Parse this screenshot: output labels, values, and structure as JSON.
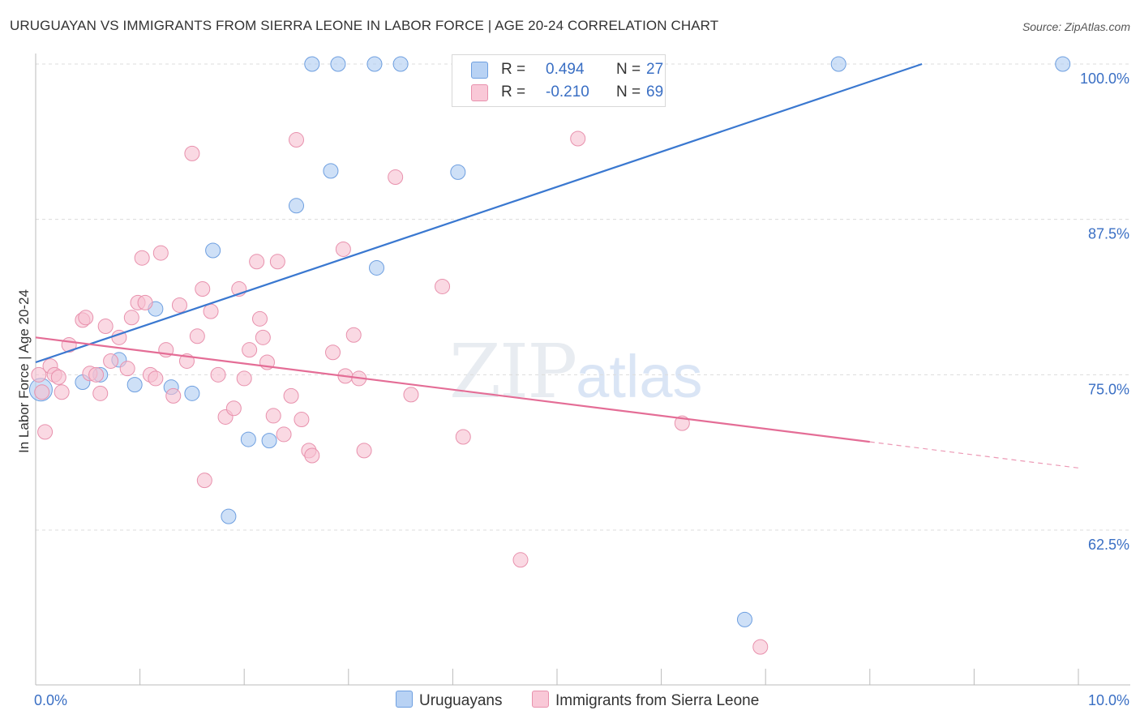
{
  "title": "URUGUAYAN VS IMMIGRANTS FROM SIERRA LEONE IN LABOR FORCE | AGE 20-24 CORRELATION CHART",
  "source": "Source: ZipAtlas.com",
  "watermark": {
    "zip": "ZIP",
    "atlas": "atlas"
  },
  "legend": {
    "rows": [
      {
        "r_label": "R =",
        "r_value": "0.494",
        "n_label": "N =",
        "n_value": "27"
      },
      {
        "r_label": "R =",
        "r_value": "-0.210",
        "n_label": "N =",
        "n_value": "69"
      }
    ]
  },
  "chart_data": {
    "type": "scatter",
    "ylabel": "In Labor Force | Age 20-24",
    "xlim": [
      0,
      10
    ],
    "ylim": [
      51.5,
      101
    ],
    "x_tick_labels": [
      "0.0%",
      "10.0%"
    ],
    "y_ticks": [
      62.5,
      75.0,
      87.5,
      100.0
    ],
    "y_tick_labels": [
      "62.5%",
      "75.0%",
      "87.5%",
      "100.0%"
    ],
    "grid": true,
    "legend_position": "top-center",
    "colors": {
      "uruguayans": "#3a78d0",
      "sierra_leone": "#e46d96",
      "tick_label": "#3a6fc4"
    },
    "series": [
      {
        "name": "Uruguayans",
        "fill": "#aecbf2",
        "stroke": "#6e9fe0",
        "trend": {
          "x0": 0.0,
          "y0": 76.0,
          "x1": 8.5,
          "y1": 100.0,
          "dash_to": null
        },
        "points": [
          [
            0.05,
            73.8,
            14
          ],
          [
            0.45,
            74.4,
            9
          ],
          [
            0.62,
            75.0,
            9
          ],
          [
            0.8,
            76.2,
            9
          ],
          [
            0.95,
            74.2,
            9
          ],
          [
            1.15,
            80.3,
            9
          ],
          [
            1.3,
            74.0,
            9
          ],
          [
            1.5,
            73.5,
            9
          ],
          [
            1.7,
            85.0,
            9
          ],
          [
            1.85,
            63.6,
            9
          ],
          [
            2.04,
            69.8,
            9
          ],
          [
            2.24,
            69.7,
            9
          ],
          [
            2.5,
            88.6,
            9
          ],
          [
            2.65,
            100.0,
            9
          ],
          [
            2.83,
            91.4,
            9
          ],
          [
            2.9,
            100.0,
            9
          ],
          [
            3.25,
            100.0,
            9
          ],
          [
            3.27,
            83.6,
            9
          ],
          [
            3.5,
            100.0,
            9
          ],
          [
            4.05,
            91.3,
            9
          ],
          [
            4.57,
            100.0,
            9
          ],
          [
            6.8,
            55.3,
            9
          ],
          [
            7.7,
            100.0,
            9
          ],
          [
            9.85,
            100.0,
            9
          ]
        ]
      },
      {
        "name": "Immigrants from Sierra Leone",
        "fill": "#f7bfd0",
        "stroke": "#e891ad",
        "trend": {
          "x0": 0.0,
          "y0": 78.0,
          "x1": 8.0,
          "y1": 69.6,
          "dash_to": [
            10.0,
            67.5
          ]
        },
        "points": [
          [
            0.03,
            75.0,
            9
          ],
          [
            0.06,
            73.6,
            9
          ],
          [
            0.09,
            70.4,
            9
          ],
          [
            0.14,
            75.7,
            9
          ],
          [
            0.18,
            75.0,
            9
          ],
          [
            0.22,
            74.8,
            9
          ],
          [
            0.25,
            73.6,
            9
          ],
          [
            0.32,
            77.4,
            9
          ],
          [
            0.45,
            79.4,
            9
          ],
          [
            0.48,
            79.6,
            9
          ],
          [
            0.52,
            75.1,
            9
          ],
          [
            0.58,
            75.0,
            9
          ],
          [
            0.62,
            73.5,
            9
          ],
          [
            0.67,
            78.9,
            9
          ],
          [
            0.72,
            76.1,
            9
          ],
          [
            0.8,
            78.0,
            9
          ],
          [
            0.88,
            75.5,
            9
          ],
          [
            0.92,
            79.6,
            9
          ],
          [
            0.98,
            80.8,
            9
          ],
          [
            1.02,
            84.4,
            9
          ],
          [
            1.05,
            80.8,
            9
          ],
          [
            1.1,
            75.0,
            9
          ],
          [
            1.15,
            74.7,
            9
          ],
          [
            1.2,
            84.8,
            9
          ],
          [
            1.25,
            77.0,
            9
          ],
          [
            1.32,
            73.3,
            9
          ],
          [
            1.38,
            80.6,
            9
          ],
          [
            1.45,
            76.1,
            9
          ],
          [
            1.5,
            92.8,
            9
          ],
          [
            1.55,
            78.1,
            9
          ],
          [
            1.6,
            81.9,
            9
          ],
          [
            1.62,
            66.5,
            9
          ],
          [
            1.68,
            80.1,
            9
          ],
          [
            1.75,
            75.0,
            9
          ],
          [
            1.82,
            71.6,
            9
          ],
          [
            1.9,
            72.3,
            9
          ],
          [
            1.95,
            81.9,
            9
          ],
          [
            2.0,
            74.7,
            9
          ],
          [
            2.05,
            77.0,
            9
          ],
          [
            2.12,
            84.1,
            9
          ],
          [
            2.15,
            79.5,
            9
          ],
          [
            2.18,
            78.0,
            9
          ],
          [
            2.22,
            76.0,
            9
          ],
          [
            2.28,
            71.7,
            9
          ],
          [
            2.32,
            84.1,
            9
          ],
          [
            2.38,
            70.2,
            9
          ],
          [
            2.45,
            73.3,
            9
          ],
          [
            2.5,
            93.9,
            9
          ],
          [
            2.55,
            71.4,
            9
          ],
          [
            2.62,
            68.9,
            9
          ],
          [
            2.65,
            68.5,
            9
          ],
          [
            2.85,
            76.8,
            9
          ],
          [
            2.95,
            85.1,
            9
          ],
          [
            2.97,
            74.9,
            9
          ],
          [
            3.05,
            78.2,
            9
          ],
          [
            3.1,
            74.7,
            9
          ],
          [
            3.15,
            68.9,
            9
          ],
          [
            3.45,
            90.9,
            9
          ],
          [
            3.6,
            73.4,
            9
          ],
          [
            3.9,
            82.1,
            9
          ],
          [
            4.1,
            70.0,
            9
          ],
          [
            4.65,
            60.1,
            9
          ],
          [
            5.2,
            94.0,
            9
          ],
          [
            6.2,
            71.1,
            9
          ],
          [
            6.95,
            53.1,
            9
          ]
        ]
      }
    ]
  },
  "bottom_legend": [
    {
      "label": "Uruguayans"
    },
    {
      "label": "Immigrants from Sierra Leone"
    }
  ]
}
